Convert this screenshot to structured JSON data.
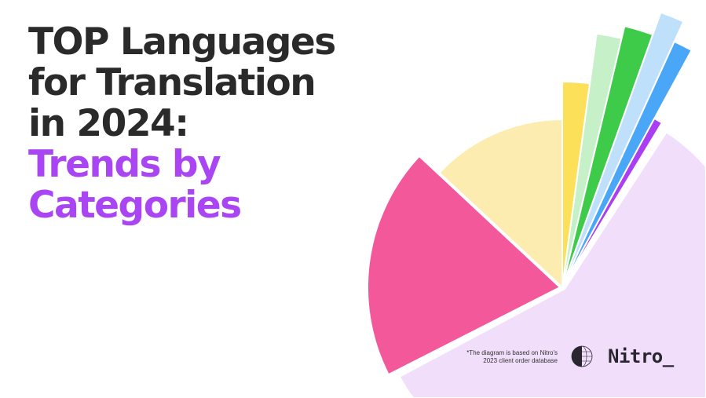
{
  "title": {
    "line1": "TOP Languages",
    "line2": "for Translation",
    "line3": "in 2024:",
    "line4": "Trends by",
    "line5": "Categories"
  },
  "footnote": {
    "line1": "*The diagram is based on Nitro's",
    "line2": "2023 client order database"
  },
  "brand": {
    "name": "Nitro_",
    "icon": "globe-icon"
  },
  "colors": {
    "title_text": "#2a2a2a",
    "accent": "#a945f2",
    "segments": [
      "#f1defb",
      "#f2589a",
      "#fdecb0",
      "#fde05a",
      "#c5f0c8",
      "#3fcb4a",
      "#bfe0fb",
      "#4aa6f6",
      "#a93ef2"
    ]
  }
}
